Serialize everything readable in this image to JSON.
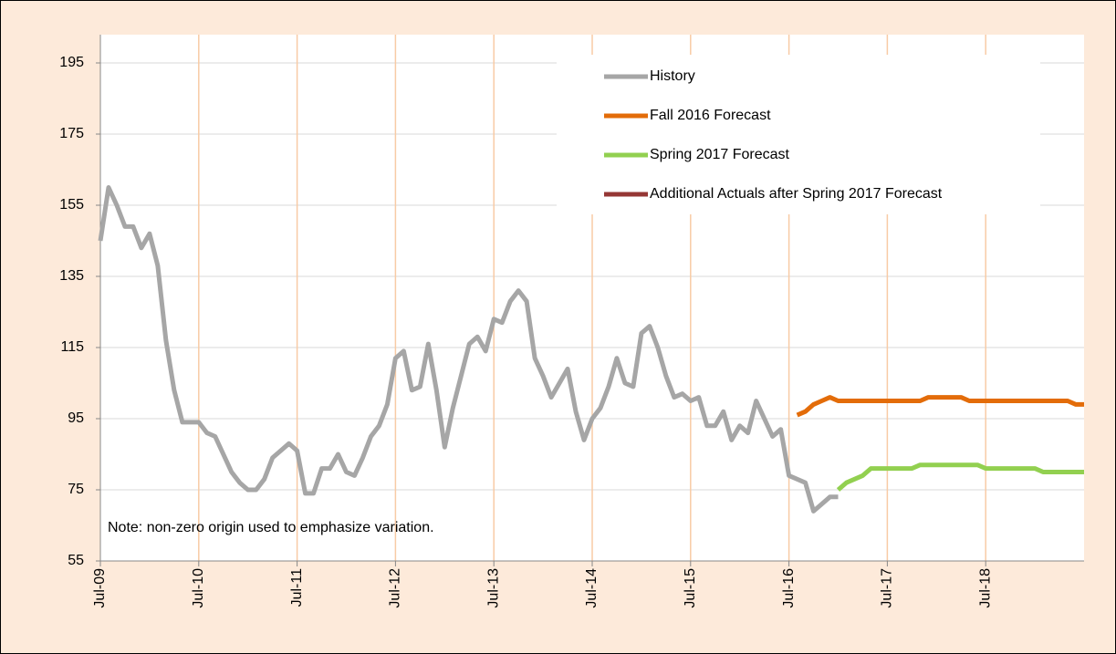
{
  "chart_data": {
    "type": "line",
    "annotations": [
      "Note: non-zero origin used to emphasize variation."
    ],
    "categories": [
      "Jul-09",
      null,
      null,
      null,
      null,
      null,
      null,
      null,
      null,
      null,
      null,
      null,
      "Jul-10",
      null,
      null,
      null,
      null,
      null,
      null,
      null,
      null,
      null,
      null,
      null,
      "Jul-11",
      null,
      null,
      null,
      null,
      null,
      null,
      null,
      null,
      null,
      null,
      null,
      "Jul-12",
      null,
      null,
      null,
      null,
      null,
      null,
      null,
      null,
      null,
      null,
      null,
      "Jul-13",
      null,
      null,
      null,
      null,
      null,
      null,
      null,
      null,
      null,
      null,
      null,
      "Jul-14",
      null,
      null,
      null,
      null,
      null,
      null,
      null,
      null,
      null,
      null,
      null,
      "Jul-15",
      null,
      null,
      null,
      null,
      null,
      null,
      null,
      null,
      null,
      null,
      null,
      "Jul-16",
      null,
      null,
      null,
      null,
      null,
      null,
      null,
      null,
      null,
      null,
      null,
      "Jul-17",
      null,
      null,
      null,
      null,
      null,
      null,
      null,
      null,
      null,
      null,
      null,
      "Jul-18",
      null,
      null,
      null,
      null,
      null,
      null,
      null,
      null,
      null,
      null,
      null,
      null
    ],
    "series": [
      {
        "name": "History",
        "color": "#a6a6a6",
        "values": [
          145,
          160,
          155,
          149,
          149,
          143,
          147,
          138,
          117,
          103,
          94,
          94,
          94,
          91,
          90,
          85,
          80,
          77,
          75,
          75,
          78,
          84,
          86,
          88,
          86,
          74,
          74,
          81,
          81,
          85,
          80,
          79,
          84,
          90,
          93,
          99,
          112,
          114,
          103,
          104,
          116,
          103,
          87,
          98,
          107,
          116,
          118,
          114,
          123,
          122,
          128,
          131,
          128,
          112,
          107,
          101,
          105,
          109,
          97,
          89,
          95,
          98,
          104,
          112,
          105,
          104,
          119,
          121,
          115,
          107,
          101,
          102,
          100,
          101,
          93,
          93,
          97,
          89,
          93,
          91,
          100,
          95,
          90,
          92,
          79,
          78,
          77,
          69,
          71,
          73,
          73,
          null,
          null,
          null,
          null,
          null,
          null,
          null,
          null,
          null,
          null,
          null,
          null,
          null,
          null,
          null,
          null,
          null,
          null,
          null,
          null,
          null,
          null,
          null,
          null,
          null,
          null,
          null,
          null,
          null,
          null
        ]
      },
      {
        "name": "Fall 2016 Forecast",
        "color": "#e36c09",
        "values": [
          null,
          null,
          null,
          null,
          null,
          null,
          null,
          null,
          null,
          null,
          null,
          null,
          null,
          null,
          null,
          null,
          null,
          null,
          null,
          null,
          null,
          null,
          null,
          null,
          null,
          null,
          null,
          null,
          null,
          null,
          null,
          null,
          null,
          null,
          null,
          null,
          null,
          null,
          null,
          null,
          null,
          null,
          null,
          null,
          null,
          null,
          null,
          null,
          null,
          null,
          null,
          null,
          null,
          null,
          null,
          null,
          null,
          null,
          null,
          null,
          null,
          null,
          null,
          null,
          null,
          null,
          null,
          null,
          null,
          null,
          null,
          null,
          null,
          null,
          null,
          null,
          null,
          null,
          null,
          null,
          null,
          null,
          null,
          null,
          null,
          96,
          97,
          99,
          100,
          101,
          100,
          100,
          100,
          100,
          100,
          100,
          100,
          100,
          100,
          100,
          100,
          101,
          101,
          101,
          101,
          101,
          100,
          100,
          100,
          100,
          100,
          100,
          100,
          100,
          100,
          100,
          100,
          100,
          100,
          99,
          99
        ]
      },
      {
        "name": "Spring 2017 Forecast",
        "color": "#92d050",
        "values": [
          null,
          null,
          null,
          null,
          null,
          null,
          null,
          null,
          null,
          null,
          null,
          null,
          null,
          null,
          null,
          null,
          null,
          null,
          null,
          null,
          null,
          null,
          null,
          null,
          null,
          null,
          null,
          null,
          null,
          null,
          null,
          null,
          null,
          null,
          null,
          null,
          null,
          null,
          null,
          null,
          null,
          null,
          null,
          null,
          null,
          null,
          null,
          null,
          null,
          null,
          null,
          null,
          null,
          null,
          null,
          null,
          null,
          null,
          null,
          null,
          null,
          null,
          null,
          null,
          null,
          null,
          null,
          null,
          null,
          null,
          null,
          null,
          null,
          null,
          null,
          null,
          null,
          null,
          null,
          null,
          null,
          null,
          null,
          null,
          null,
          null,
          null,
          null,
          null,
          null,
          75,
          77,
          78,
          79,
          81,
          81,
          81,
          81,
          81,
          81,
          82,
          82,
          82,
          82,
          82,
          82,
          82,
          82,
          81,
          81,
          81,
          81,
          81,
          81,
          81,
          80,
          80,
          80,
          80,
          80,
          80
        ]
      },
      {
        "name": "Additional Actuals after Spring 2017 Forecast",
        "color": "#953735",
        "values": [
          null,
          null,
          null,
          null,
          null,
          null,
          null,
          null,
          null,
          null,
          null,
          null,
          null,
          null,
          null,
          null,
          null,
          null,
          null,
          null,
          null,
          null,
          null,
          null,
          null,
          null,
          null,
          null,
          null,
          null,
          null,
          null,
          null,
          null,
          null,
          null,
          null,
          null,
          null,
          null,
          null,
          null,
          null,
          null,
          null,
          null,
          null,
          null,
          null,
          null,
          null,
          null,
          null,
          null,
          null,
          null,
          null,
          null,
          null,
          null,
          null,
          null,
          null,
          null,
          null,
          null,
          null,
          null,
          null,
          null,
          null,
          null,
          null,
          null,
          null,
          null,
          null,
          null,
          null,
          null,
          null,
          null,
          null,
          null,
          null,
          null,
          null,
          null,
          null,
          null,
          null,
          null,
          null,
          null,
          null,
          null,
          null,
          null,
          null,
          null,
          null,
          null,
          null,
          null,
          null,
          null,
          null,
          null,
          null,
          null,
          null,
          null,
          null,
          null,
          null,
          null,
          null,
          null,
          null,
          null,
          null
        ]
      }
    ],
    "ylim": [
      55,
      195
    ],
    "yticks": [
      55,
      75,
      95,
      115,
      135,
      155,
      175,
      195
    ],
    "grid": true,
    "legend": "upper right"
  }
}
